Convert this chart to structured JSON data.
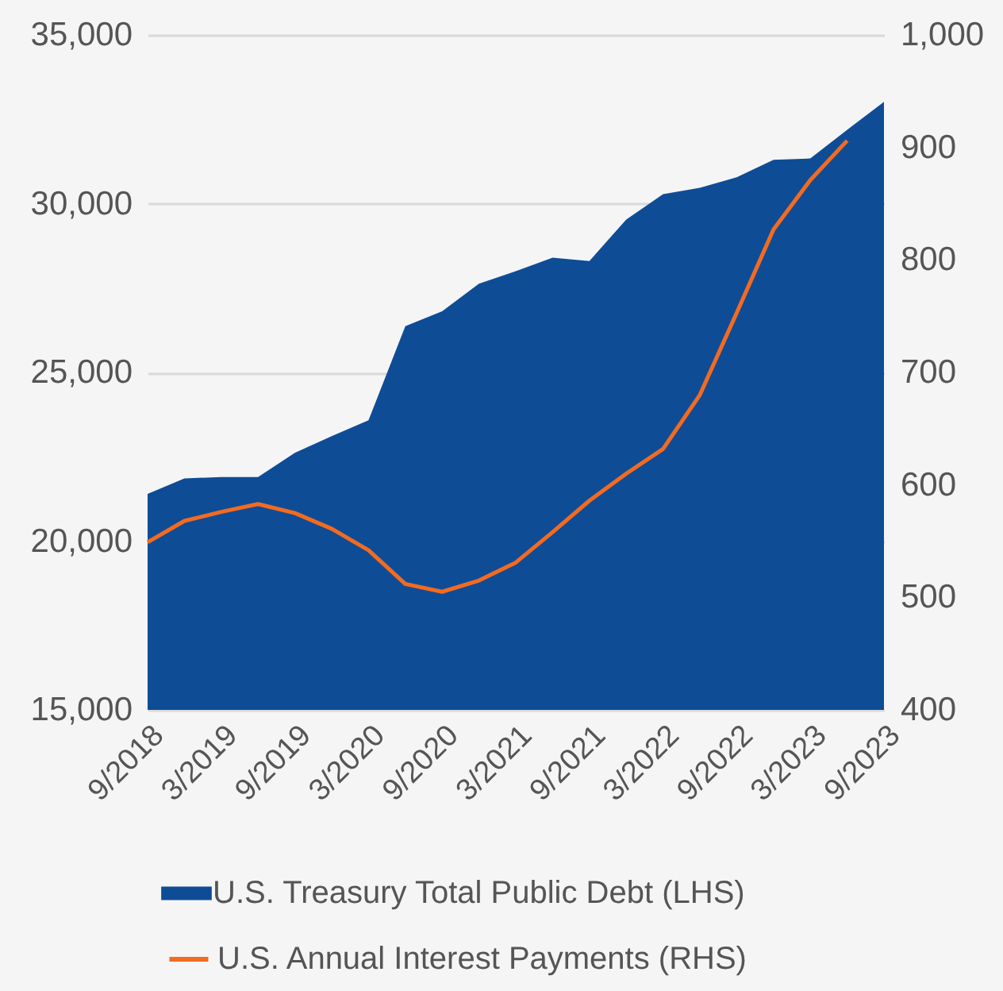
{
  "chart_data": {
    "type": "area",
    "categories": [
      "9/2018",
      null,
      "3/2019",
      null,
      "9/2019",
      null,
      "3/2020",
      null,
      "9/2020",
      null,
      "3/2021",
      null,
      "9/2021",
      null,
      "3/2022",
      null,
      "9/2022",
      null,
      "3/2023",
      null,
      "9/2023"
    ],
    "series": [
      {
        "name": "U.S. Treasury Total Public Debt (LHS)",
        "color": "#0f4c96",
        "values": [
          21400,
          21860,
          21900,
          21900,
          22620,
          23110,
          23580,
          26370,
          26810,
          27630,
          28000,
          28400,
          28300,
          29530,
          30280,
          30470,
          30780,
          31300,
          31340,
          32190,
          33020
        ]
      },
      {
        "name": "U.S. Annual Interest Payments (RHS)",
        "type": "line",
        "axis": "y2",
        "color": "#f26b21",
        "values": [
          549,
          568,
          576,
          583,
          575,
          561,
          542,
          512,
          505,
          515,
          531,
          558,
          586,
          610,
          632,
          680,
          753,
          827,
          871,
          906,
          null
        ]
      }
    ],
    "ylim": [
      15000,
      35000
    ],
    "yticks": [
      {
        "value": 15000,
        "label": "15,000"
      },
      {
        "value": 20000,
        "label": "20,000"
      },
      {
        "value": 25000,
        "label": "25,000"
      },
      {
        "value": 30000,
        "label": "30,000"
      },
      {
        "value": 35000,
        "label": "35,000"
      }
    ],
    "y2lim": [
      400,
      1000
    ],
    "y2ticks": [
      400,
      500,
      600,
      700,
      800,
      900,
      {
        "value": 1000,
        "label": "1,000"
      }
    ],
    "grid": "y",
    "legend": "bottom"
  }
}
